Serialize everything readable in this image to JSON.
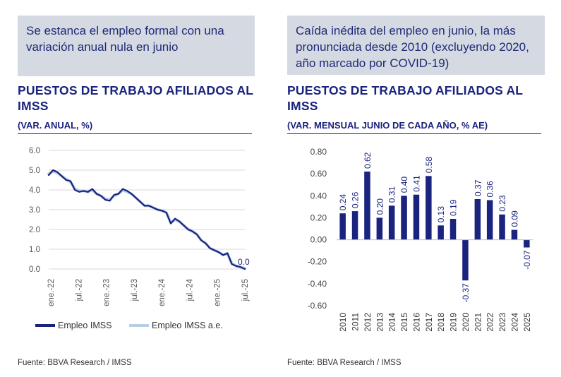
{
  "left": {
    "callout": "Se estanca el empleo formal con una variación anual nula en junio",
    "title": "PUESTOS DE TRABAJO AFILIADOS AL IMSS",
    "subtitle": "(VAR. ANUAL, %)",
    "legend": [
      {
        "label": "Empleo IMSS",
        "color": "#1a237e"
      },
      {
        "label": "Empleo IMSS a.e.",
        "color": "#b8cde8"
      }
    ],
    "source": "Fuente: BBVA Research / IMSS"
  },
  "right": {
    "callout": "Caída inédita del empleo en junio, la más pronunciada desde 2010 (excluyendo 2020, año marcado por COVID-19)",
    "title": "PUESTOS DE TRABAJO AFILIADOS AL IMSS",
    "subtitle": "(VAR. MENSUAL JUNIO DE CADA AÑO, % AE)",
    "source": "Fuente: BBVA Research / IMSS"
  },
  "chart_data": [
    {
      "type": "line",
      "title": "PUESTOS DE TRABAJO AFILIADOS AL IMSS",
      "subtitle": "(VAR. ANUAL, %)",
      "ylim": [
        0,
        6
      ],
      "yticks": [
        "6.0",
        "5.0",
        "4.0",
        "3.0",
        "2.0",
        "1.0",
        "0.0"
      ],
      "ytick_values": [
        6,
        5,
        4,
        3,
        2,
        1,
        0
      ],
      "xticks": [
        "ene.-22",
        "jul.-22",
        "ene.-23",
        "jul.-23",
        "ene.-24",
        "jul.-24",
        "ene.-25",
        "jul.-25"
      ],
      "grid": "horizontal",
      "end_label": "0.0",
      "series": [
        {
          "name": "Empleo IMSS",
          "color": "#1a237e",
          "values": [
            4.75,
            5.0,
            4.9,
            4.7,
            4.5,
            4.45,
            4.0,
            3.9,
            3.95,
            3.9,
            4.05,
            3.8,
            3.7,
            3.5,
            3.45,
            3.75,
            3.8,
            4.05,
            3.95,
            3.8,
            3.6,
            3.4,
            3.2,
            3.2,
            3.1,
            3.0,
            2.95,
            2.85,
            2.3,
            2.55,
            2.4,
            2.2,
            2.0,
            1.9,
            1.75,
            1.45,
            1.3,
            1.05,
            0.95,
            0.85,
            0.7,
            0.8,
            0.25,
            0.15,
            0.1,
            0.0
          ]
        },
        {
          "name": "Empleo IMSS a.e.",
          "color": "#b8cde8",
          "values": [
            4.8,
            4.95,
            4.85,
            4.7,
            4.55,
            4.4,
            4.05,
            3.95,
            3.95,
            3.9,
            4.0,
            3.8,
            3.7,
            3.55,
            3.5,
            3.7,
            3.8,
            4.0,
            3.9,
            3.8,
            3.6,
            3.4,
            3.2,
            3.2,
            3.1,
            3.0,
            2.95,
            2.85,
            2.35,
            2.5,
            2.4,
            2.2,
            2.0,
            1.9,
            1.75,
            1.45,
            1.3,
            1.05,
            0.95,
            0.85,
            0.72,
            0.78,
            0.28,
            0.15,
            0.1,
            0.02
          ]
        }
      ]
    },
    {
      "type": "bar",
      "title": "PUESTOS DE TRABAJO AFILIADOS AL IMSS",
      "subtitle": "(VAR. MENSUAL JUNIO DE CADA AÑO, % AE)",
      "ylim": [
        -0.6,
        0.8
      ],
      "yticks": [
        "0.80",
        "0.60",
        "0.40",
        "0.20",
        "0.00",
        "-0.20",
        "-0.40",
        "-0.60"
      ],
      "ytick_values": [
        0.8,
        0.6,
        0.4,
        0.2,
        0.0,
        -0.2,
        -0.4,
        -0.6
      ],
      "categories": [
        "2010",
        "2011",
        "2012",
        "2013",
        "2014",
        "2015",
        "2016",
        "2017",
        "2018",
        "2019",
        "2020",
        "2021",
        "2022",
        "2023",
        "2024",
        "2025"
      ],
      "values": [
        0.24,
        0.26,
        0.62,
        0.2,
        0.31,
        0.4,
        0.41,
        0.58,
        0.13,
        0.19,
        -0.37,
        0.37,
        0.36,
        0.23,
        0.09,
        -0.07
      ],
      "labels": [
        "0.24",
        "0.26",
        "0.62",
        "0.20",
        "0.31",
        "0.40",
        "0.41",
        "0.58",
        "0.13",
        "0.19",
        "-0.37",
        "0.37",
        "0.36",
        "0.23",
        "0.09",
        "-0.07"
      ],
      "color": "#1a237e"
    }
  ]
}
